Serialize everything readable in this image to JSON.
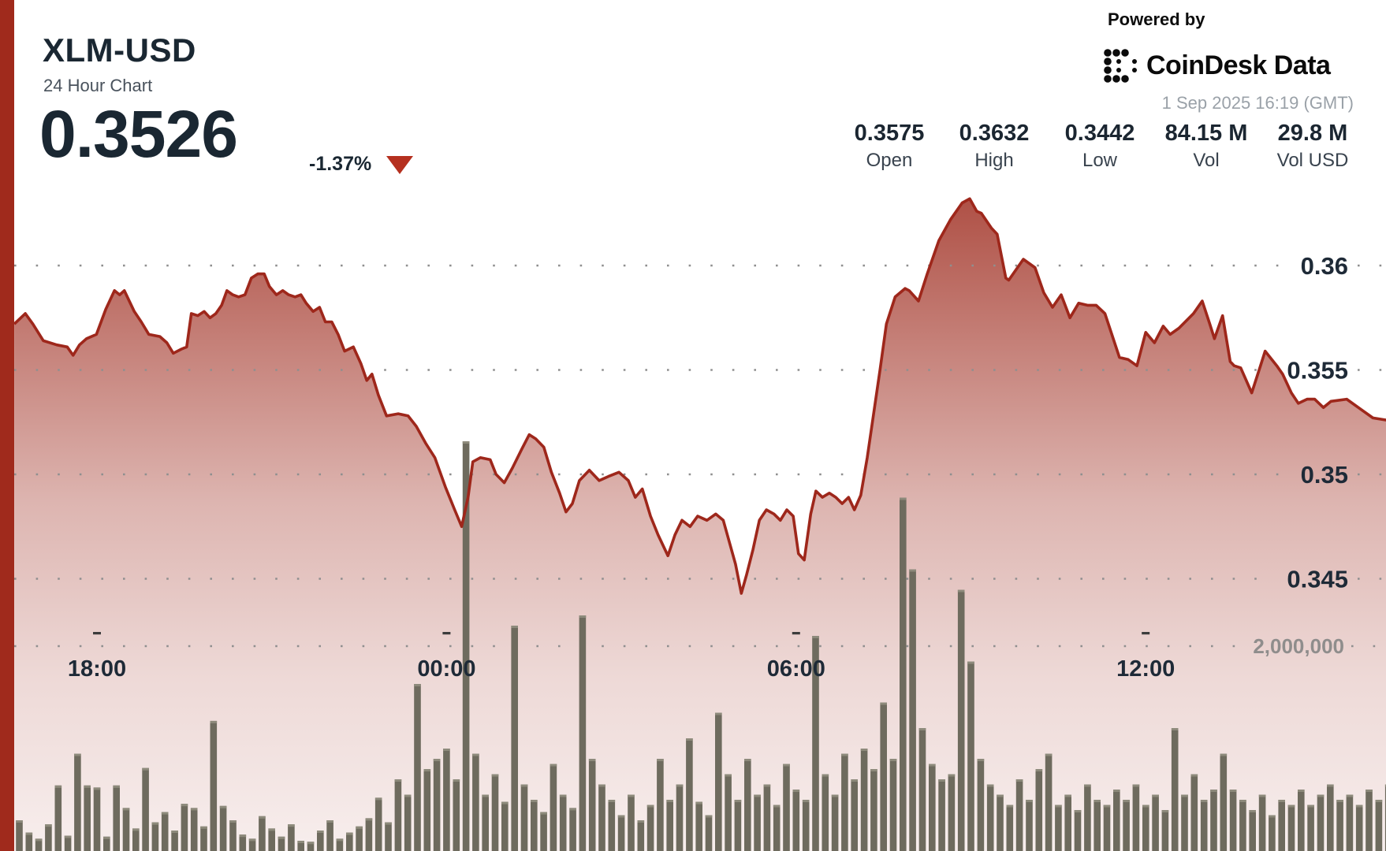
{
  "header": {
    "symbol": "XLM-USD",
    "subtitle": "24 Hour Chart",
    "price": "0.3526",
    "change": "-1.37%"
  },
  "branding": {
    "powered_by": "Powered by",
    "logo_text": "CoinDesk Data",
    "timestamp": "1 Sep 2025 16:19 (GMT)"
  },
  "stats": [
    {
      "value": "0.3575",
      "label": "Open"
    },
    {
      "value": "0.3632",
      "label": "High"
    },
    {
      "value": "0.3442",
      "label": "Low"
    },
    {
      "value": "84.15 M",
      "label": "Vol"
    },
    {
      "value": "29.8 M",
      "label": "Vol USD"
    }
  ],
  "chart_data": {
    "type": "area",
    "title": "XLM-USD 24 Hour Chart",
    "legend_position": "none",
    "grid": "dotted-horizontal",
    "price_axis": {
      "side": "right",
      "ticks": [
        0.36,
        0.355,
        0.35,
        0.345
      ],
      "tick_labels": [
        "0.36",
        "0.355",
        "0.35",
        "0.345"
      ]
    },
    "volume_axis": {
      "side": "right",
      "tick_value": 2000000,
      "tick_label": "2,000,000"
    },
    "time_axis": {
      "tick_labels": [
        "18:00",
        "00:00",
        "06:00",
        "12:00"
      ],
      "tick_hours": [
        18,
        24,
        30,
        36
      ]
    },
    "price_points": [
      [
        16.58,
        0.3572
      ],
      [
        16.77,
        0.3577
      ],
      [
        16.9,
        0.3572
      ],
      [
        17.08,
        0.3564
      ],
      [
        17.31,
        0.3562
      ],
      [
        17.49,
        0.3561
      ],
      [
        17.59,
        0.3557
      ],
      [
        17.7,
        0.3562
      ],
      [
        17.82,
        0.3565
      ],
      [
        17.99,
        0.3567
      ],
      [
        18.15,
        0.3579
      ],
      [
        18.3,
        0.3588
      ],
      [
        18.39,
        0.3586
      ],
      [
        18.47,
        0.3588
      ],
      [
        18.64,
        0.3578
      ],
      [
        18.76,
        0.3573
      ],
      [
        18.89,
        0.3567
      ],
      [
        19.08,
        0.3566
      ],
      [
        19.2,
        0.3563
      ],
      [
        19.31,
        0.3558
      ],
      [
        19.45,
        0.356
      ],
      [
        19.54,
        0.3561
      ],
      [
        19.62,
        0.3577
      ],
      [
        19.73,
        0.3576
      ],
      [
        19.84,
        0.3578
      ],
      [
        19.94,
        0.3575
      ],
      [
        20.04,
        0.3577
      ],
      [
        20.14,
        0.3581
      ],
      [
        20.23,
        0.3588
      ],
      [
        20.33,
        0.3586
      ],
      [
        20.43,
        0.3585
      ],
      [
        20.54,
        0.3586
      ],
      [
        20.65,
        0.3594
      ],
      [
        20.76,
        0.3596
      ],
      [
        20.87,
        0.3596
      ],
      [
        20.96,
        0.359
      ],
      [
        21.08,
        0.3586
      ],
      [
        21.19,
        0.3588
      ],
      [
        21.29,
        0.3586
      ],
      [
        21.4,
        0.3585
      ],
      [
        21.5,
        0.3586
      ],
      [
        21.59,
        0.3582
      ],
      [
        21.71,
        0.3578
      ],
      [
        21.82,
        0.358
      ],
      [
        21.92,
        0.3573
      ],
      [
        22.03,
        0.3573
      ],
      [
        22.14,
        0.3567
      ],
      [
        22.25,
        0.3559
      ],
      [
        22.4,
        0.3561
      ],
      [
        22.53,
        0.3553
      ],
      [
        22.63,
        0.3545
      ],
      [
        22.72,
        0.3548
      ],
      [
        22.83,
        0.3538
      ],
      [
        22.97,
        0.3528
      ],
      [
        23.17,
        0.3529
      ],
      [
        23.34,
        0.3528
      ],
      [
        23.48,
        0.3523
      ],
      [
        23.64,
        0.3515
      ],
      [
        23.8,
        0.3508
      ],
      [
        23.98,
        0.3494
      ],
      [
        24.14,
        0.3483
      ],
      [
        24.26,
        0.3475
      ],
      [
        24.37,
        0.3489
      ],
      [
        24.45,
        0.3506
      ],
      [
        24.58,
        0.3508
      ],
      [
        24.75,
        0.3507
      ],
      [
        24.85,
        0.35
      ],
      [
        24.99,
        0.3496
      ],
      [
        25.13,
        0.3503
      ],
      [
        25.29,
        0.3512
      ],
      [
        25.42,
        0.3519
      ],
      [
        25.53,
        0.3517
      ],
      [
        25.67,
        0.3513
      ],
      [
        25.8,
        0.3501
      ],
      [
        25.94,
        0.3491
      ],
      [
        26.05,
        0.3482
      ],
      [
        26.16,
        0.3486
      ],
      [
        26.28,
        0.3497
      ],
      [
        26.45,
        0.3502
      ],
      [
        26.62,
        0.3497
      ],
      [
        26.78,
        0.3499
      ],
      [
        26.96,
        0.3501
      ],
      [
        27.12,
        0.3497
      ],
      [
        27.24,
        0.3489
      ],
      [
        27.36,
        0.3493
      ],
      [
        27.5,
        0.348
      ],
      [
        27.63,
        0.3471
      ],
      [
        27.8,
        0.3461
      ],
      [
        27.92,
        0.3471
      ],
      [
        28.04,
        0.3478
      ],
      [
        28.18,
        0.3475
      ],
      [
        28.31,
        0.348
      ],
      [
        28.47,
        0.3478
      ],
      [
        28.62,
        0.3481
      ],
      [
        28.75,
        0.3478
      ],
      [
        28.85,
        0.3468
      ],
      [
        28.96,
        0.3457
      ],
      [
        29.06,
        0.3443
      ],
      [
        29.15,
        0.3452
      ],
      [
        29.26,
        0.3464
      ],
      [
        29.37,
        0.3478
      ],
      [
        29.49,
        0.3483
      ],
      [
        29.62,
        0.3481
      ],
      [
        29.73,
        0.3478
      ],
      [
        29.84,
        0.3483
      ],
      [
        29.95,
        0.348
      ],
      [
        30.04,
        0.3462
      ],
      [
        30.14,
        0.3459
      ],
      [
        30.25,
        0.3481
      ],
      [
        30.34,
        0.3492
      ],
      [
        30.45,
        0.3489
      ],
      [
        30.57,
        0.3491
      ],
      [
        30.68,
        0.3489
      ],
      [
        30.79,
        0.3486
      ],
      [
        30.9,
        0.3489
      ],
      [
        31.0,
        0.3483
      ],
      [
        31.11,
        0.349
      ],
      [
        31.22,
        0.3508
      ],
      [
        31.33,
        0.3529
      ],
      [
        31.44,
        0.355
      ],
      [
        31.55,
        0.3572
      ],
      [
        31.7,
        0.3585
      ],
      [
        31.87,
        0.3589
      ],
      [
        31.94,
        0.3588
      ],
      [
        32.1,
        0.3583
      ],
      [
        32.25,
        0.3596
      ],
      [
        32.45,
        0.3612
      ],
      [
        32.65,
        0.3622
      ],
      [
        32.85,
        0.363
      ],
      [
        32.98,
        0.3632
      ],
      [
        33.1,
        0.3626
      ],
      [
        33.18,
        0.3625
      ],
      [
        33.35,
        0.3618
      ],
      [
        33.45,
        0.3615
      ],
      [
        33.6,
        0.3594
      ],
      [
        33.65,
        0.3593
      ],
      [
        33.9,
        0.3603
      ],
      [
        34.1,
        0.3599
      ],
      [
        34.25,
        0.3587
      ],
      [
        34.4,
        0.358
      ],
      [
        34.55,
        0.3586
      ],
      [
        34.7,
        0.3575
      ],
      [
        34.85,
        0.3582
      ],
      [
        35.0,
        0.3581
      ],
      [
        35.15,
        0.3581
      ],
      [
        35.3,
        0.3577
      ],
      [
        35.55,
        0.3556
      ],
      [
        35.7,
        0.3555
      ],
      [
        35.85,
        0.3552
      ],
      [
        36.0,
        0.3568
      ],
      [
        36.15,
        0.3563
      ],
      [
        36.3,
        0.3571
      ],
      [
        36.42,
        0.3567
      ],
      [
        36.57,
        0.357
      ],
      [
        36.82,
        0.3577
      ],
      [
        36.97,
        0.3583
      ],
      [
        37.1,
        0.3572
      ],
      [
        37.18,
        0.3565
      ],
      [
        37.32,
        0.3576
      ],
      [
        37.45,
        0.3554
      ],
      [
        37.52,
        0.3552
      ],
      [
        37.63,
        0.3551
      ],
      [
        37.82,
        0.3539
      ],
      [
        37.97,
        0.3552
      ],
      [
        38.05,
        0.3559
      ],
      [
        38.25,
        0.3552
      ],
      [
        38.35,
        0.3548
      ],
      [
        38.5,
        0.3539
      ],
      [
        38.62,
        0.3534
      ],
      [
        38.77,
        0.3536
      ],
      [
        38.9,
        0.3536
      ],
      [
        39.05,
        0.3532
      ],
      [
        39.18,
        0.3535
      ],
      [
        39.45,
        0.3536
      ],
      [
        39.7,
        0.3531
      ],
      [
        39.9,
        0.3527
      ],
      [
        40.13,
        0.3526
      ]
    ],
    "volume_bars": {
      "start_hour": 16.667,
      "interval_hours": 0.16667,
      "values_millions": [
        0.3,
        0.18,
        0.12,
        0.26,
        0.64,
        0.15,
        0.95,
        0.64,
        0.62,
        0.14,
        0.64,
        0.42,
        0.22,
        0.81,
        0.28,
        0.38,
        0.2,
        0.46,
        0.42,
        0.24,
        1.27,
        0.44,
        0.3,
        0.16,
        0.12,
        0.34,
        0.22,
        0.14,
        0.26,
        0.1,
        0.09,
        0.2,
        0.3,
        0.12,
        0.18,
        0.24,
        0.32,
        0.52,
        0.28,
        0.7,
        0.55,
        1.63,
        0.8,
        0.9,
        1.0,
        0.7,
        4.0,
        0.95,
        0.55,
        0.75,
        0.48,
        2.2,
        0.65,
        0.5,
        0.38,
        0.85,
        0.55,
        0.42,
        2.3,
        0.9,
        0.65,
        0.5,
        0.35,
        0.55,
        0.3,
        0.45,
        0.9,
        0.5,
        0.65,
        1.1,
        0.48,
        0.35,
        1.35,
        0.75,
        0.5,
        0.9,
        0.55,
        0.65,
        0.45,
        0.85,
        0.6,
        0.5,
        2.1,
        0.75,
        0.55,
        0.95,
        0.7,
        1.0,
        0.8,
        1.45,
        0.9,
        3.45,
        2.75,
        1.2,
        0.85,
        0.7,
        0.75,
        2.55,
        1.85,
        0.9,
        0.65,
        0.55,
        0.45,
        0.7,
        0.5,
        0.8,
        0.95,
        0.45,
        0.55,
        0.4,
        0.65,
        0.5,
        0.45,
        0.6,
        0.5,
        0.65,
        0.45,
        0.55,
        0.4,
        1.2,
        0.55,
        0.75,
        0.5,
        0.6,
        0.95,
        0.6,
        0.5,
        0.4,
        0.55,
        0.35,
        0.5,
        0.45,
        0.6,
        0.45,
        0.55,
        0.65,
        0.5,
        0.55,
        0.45,
        0.6,
        0.5,
        0.65,
        0.55
      ]
    },
    "colors": {
      "line": "#9e271b",
      "area_base": "#9e2b1e",
      "volume_bar": "#6e6b5e",
      "accent_bar": "#a02a1c",
      "axis_text": "#1e2a37",
      "volume_axis_text": "#8f8d8c",
      "grid_dot": "#8f8f8f",
      "down_triangle": "#b5301f"
    }
  }
}
